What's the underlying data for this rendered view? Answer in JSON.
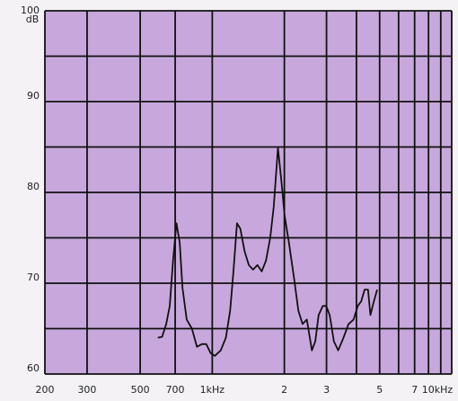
{
  "chart_data": {
    "type": "line",
    "ylabel": "dB",
    "xscale": "log",
    "xlim": [
      200,
      10000
    ],
    "ylim": [
      60,
      100
    ],
    "xticks": [
      200,
      300,
      500,
      700,
      {
        "value": 1000,
        "label": "1kHz"
      },
      {
        "value": 2000,
        "label": "2"
      },
      {
        "value": 3000,
        "label": "3"
      },
      {
        "value": 5000,
        "label": "5"
      },
      {
        "value": 7000,
        "label": "7"
      },
      {
        "value": 10000,
        "label": "10kHz"
      }
    ],
    "xgrid_minor": [
      4000,
      6000,
      8000,
      9000
    ],
    "yticks": [
      60,
      70,
      80,
      90,
      100
    ],
    "ygrid_minor": [
      65,
      75,
      85,
      95
    ],
    "grid": true,
    "background": "#c8a8dc",
    "color": "#111111",
    "x": [
      592,
      617,
      642,
      664,
      686,
      709,
      731,
      751,
      782,
      822,
      863,
      906,
      944,
      984,
      1025,
      1085,
      1140,
      1188,
      1227,
      1268,
      1310,
      1365,
      1422,
      1481,
      1544,
      1608,
      1676,
      1746,
      1806,
      1880,
      1942,
      2006,
      2090,
      2196,
      2287,
      2383,
      2483,
      2607,
      2693,
      2781,
      2897,
      2992,
      3092,
      3221,
      3356,
      3532,
      3707,
      3892,
      4054,
      4189,
      4327,
      4470,
      4577,
      4728,
      4884
    ],
    "values": [
      64,
      64.1,
      65.5,
      67.5,
      72.5,
      76.6,
      74.5,
      69.5,
      66,
      65,
      63,
      63.3,
      63.3,
      62.3,
      62,
      62.6,
      64,
      67,
      71.5,
      76.6,
      76,
      73.5,
      72,
      71.5,
      72,
      71.3,
      72.5,
      75,
      78.4,
      84.9,
      81.4,
      77.4,
      74.5,
      70.5,
      67,
      65.5,
      66,
      62.6,
      63.6,
      66.5,
      67.5,
      67.5,
      66.5,
      63.6,
      62.6,
      64,
      65.5,
      66,
      67.5,
      68,
      69.3,
      69.3,
      66.5,
      68,
      69.3
    ]
  }
}
